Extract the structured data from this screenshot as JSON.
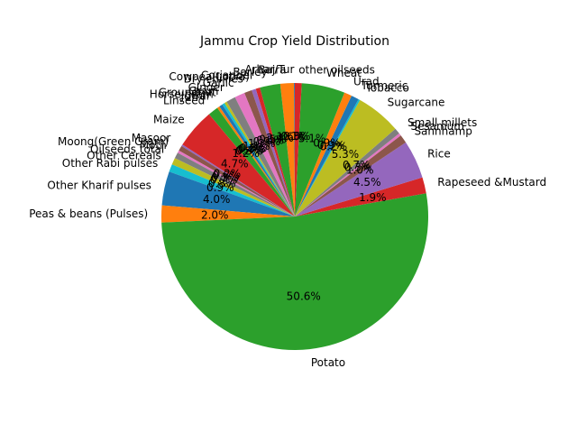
{
  "chart_data": {
    "type": "pie",
    "title": "Jammu Crop Yield Distribution",
    "start_angle_deg": 90,
    "direction": "counterclockwise",
    "labels": [
      "Arhar/Tur",
      "Bajra",
      "Barley",
      "Coriander",
      "Cowpea(Lobia)",
      "Dry chillies",
      "Garlic",
      "Ginger",
      "Gram",
      "Groundnut",
      "Horse-gram",
      "Jowar",
      "Linseed",
      "Maize",
      "Masoor",
      "Moong(Green Gram)",
      "Moth",
      "Oilseeds total",
      "Other Cereals",
      "Other Rabi pulses",
      "Other Kharif pulses",
      "Peas & beans (Pulses)",
      "Potato",
      "Rapeseed &Mustard",
      "Rice",
      "Sannhamp",
      "Sesamum",
      "Small millets",
      "Sugarcane",
      "Tobacco",
      "Turmeric",
      "Urad",
      "Wheat",
      "other oilseeds"
    ],
    "values": [
      0.1,
      1.6,
      2.4,
      0.5,
      0.5,
      0.9,
      1.2,
      1.1,
      0.3,
      0.3,
      0.4,
      0.3,
      1.2,
      4.7,
      0.2,
      0.6,
      0.3,
      0.7,
      0.8,
      0.9,
      4.0,
      2.0,
      50.6,
      1.9,
      4.5,
      1.0,
      0.3,
      0.7,
      5.3,
      0.2,
      0.9,
      0.9,
      5.1,
      0.8
    ],
    "value_labels": [
      "0.1%",
      "1.6%",
      "2.4%",
      "0.5%",
      "0.5%",
      "0.9%",
      "1.2%",
      "1.1%",
      "0.3%",
      "0.3%",
      "0.4%",
      "0.3%",
      "1.2%",
      "4.7%",
      "0.2%",
      "0.6%",
      "0.3%",
      "0.7%",
      "0.8%",
      "0.9%",
      "4.0%",
      "2.0%",
      "50.6%",
      "1.9%",
      "4.5%",
      "1.0%",
      "0.3%",
      "0.7%",
      "5.3%",
      "0.2%",
      "0.9%",
      "0.9%",
      "5.1%",
      "0.8%"
    ],
    "colors": [
      "#1f77b4",
      "#ff7f0e",
      "#2ca02c",
      "#d62728",
      "#9467bd",
      "#8c564b",
      "#e377c2",
      "#7f7f7f",
      "#bcbd22",
      "#17becf"
    ]
  }
}
